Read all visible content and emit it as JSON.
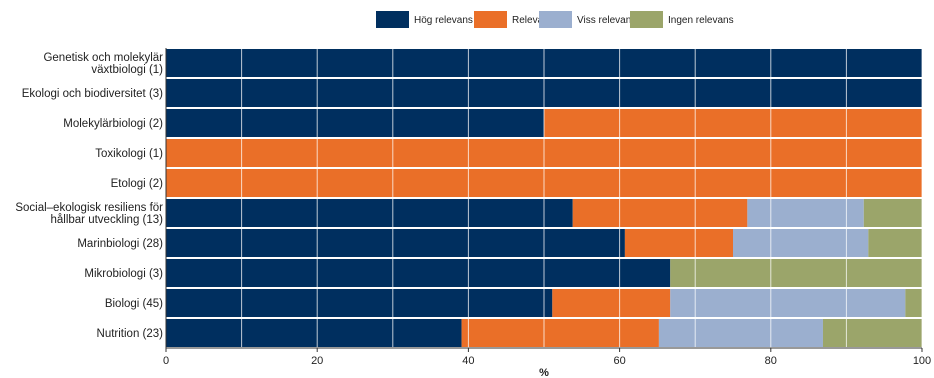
{
  "chart_data": {
    "type": "bar",
    "orientation": "horizontal",
    "stacked": true,
    "categories": [
      "Genetisk och molekylär växtbiologi (1)",
      "Ekologi och biodiversitet (3)",
      "Molekylärbiologi (2)",
      "Toxikologi (1)",
      "Etologi (2)",
      "Social-ekologisk resiliens för hållbar utveckling (13)",
      "Marinbiologi (28)",
      "Mikrobiologi (3)",
      "Biologi (45)",
      "Nutrition (23)"
    ],
    "series": [
      {
        "name": "Hög relevans",
        "color": "#002f5f",
        "values": [
          100,
          100,
          50,
          0,
          0,
          53.8,
          60.7,
          66.7,
          51.1,
          39.1
        ]
      },
      {
        "name": "Relevans",
        "color": "#ea6f28",
        "values": [
          0,
          0,
          50,
          100,
          100,
          23.1,
          14.3,
          0,
          15.6,
          26.1
        ]
      },
      {
        "name": "Viss relevans",
        "color": "#9bafcf",
        "values": [
          0,
          0,
          0,
          0,
          0,
          15.4,
          17.9,
          0,
          31.1,
          21.7
        ]
      },
      {
        "name": "Ingen relevans",
        "color": "#9ba56a",
        "values": [
          0,
          0,
          0,
          0,
          0,
          7.7,
          7.1,
          33.3,
          2.2,
          13.1
        ]
      }
    ],
    "xlabel": "%",
    "ylabel": "",
    "xlim": [
      0,
      100
    ],
    "xticks": [
      "0",
      "20",
      "40",
      "60",
      "80",
      "100"
    ],
    "grid": true,
    "legend_position": "top"
  }
}
